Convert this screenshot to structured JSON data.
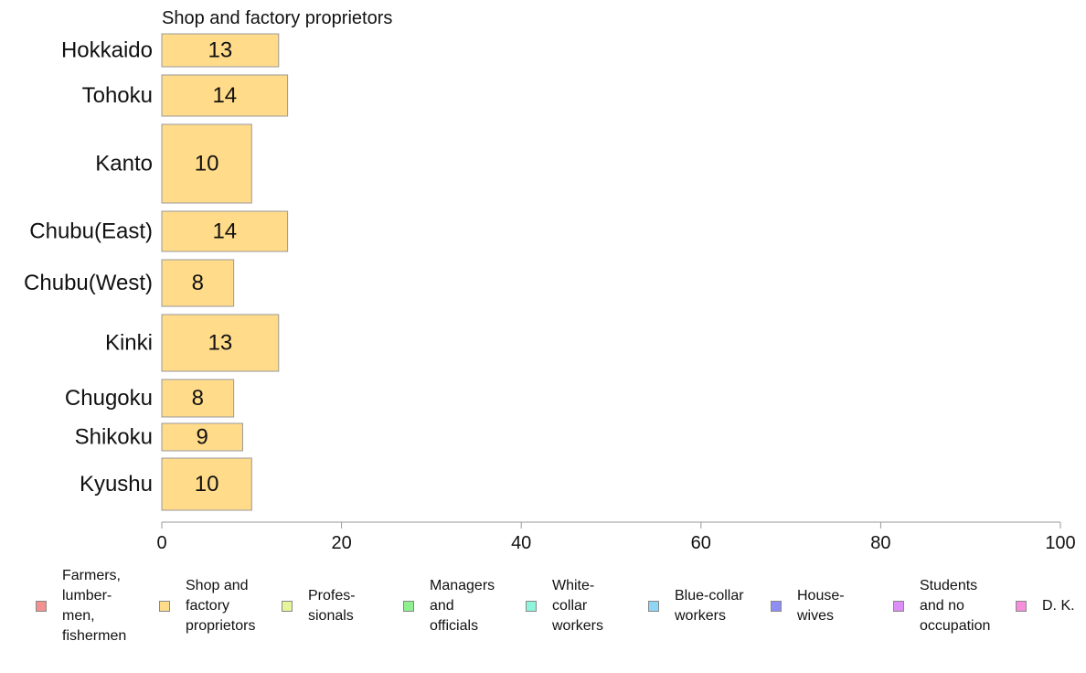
{
  "chart_data": {
    "type": "bar",
    "orientation": "horizontal",
    "title": "Shop and factory proprietors",
    "categories": [
      "Hokkaido",
      "Tohoku",
      "Kanto",
      "Chubu(East)",
      "Chubu(West)",
      "Kinki",
      "Chugoku",
      "Shikoku",
      "Kyushu"
    ],
    "values": [
      13,
      14,
      10,
      14,
      8,
      13,
      8,
      9,
      10
    ],
    "data_labels": [
      "13",
      "14",
      "10",
      "14",
      "8",
      "13",
      "8",
      "9",
      "10"
    ],
    "xlim": [
      0,
      100
    ],
    "xticks": [
      0,
      20,
      40,
      60,
      80,
      100
    ],
    "xtick_labels": [
      "0",
      "20",
      "40",
      "60",
      "80",
      "100"
    ],
    "xlabel": "",
    "ylabel": "",
    "grid": false,
    "bar_color": "#ffdb8a",
    "bar_edge_color": "#999999",
    "legend_placement": "bottom",
    "legend": [
      {
        "label": "Farmers,\nlumber-\nmen,\nfishermen",
        "color": "#f59090"
      },
      {
        "label": "Shop and\nfactory\nproprietors",
        "color": "#ffdb8a"
      },
      {
        "label": "Profes-\nsionals",
        "color": "#e5f59a"
      },
      {
        "label": "Managers\nand\nofficials",
        "color": "#8ef08e"
      },
      {
        "label": "White-\ncollar\nworkers",
        "color": "#8ef5dc"
      },
      {
        "label": "Blue-collar\nworkers",
        "color": "#8ed6f5"
      },
      {
        "label": "House-\nwives",
        "color": "#8e8ef5"
      },
      {
        "label": "Students\nand no\noccupation",
        "color": "#db8ef5"
      },
      {
        "label": "D. K.",
        "color": "#f58edb"
      }
    ]
  }
}
